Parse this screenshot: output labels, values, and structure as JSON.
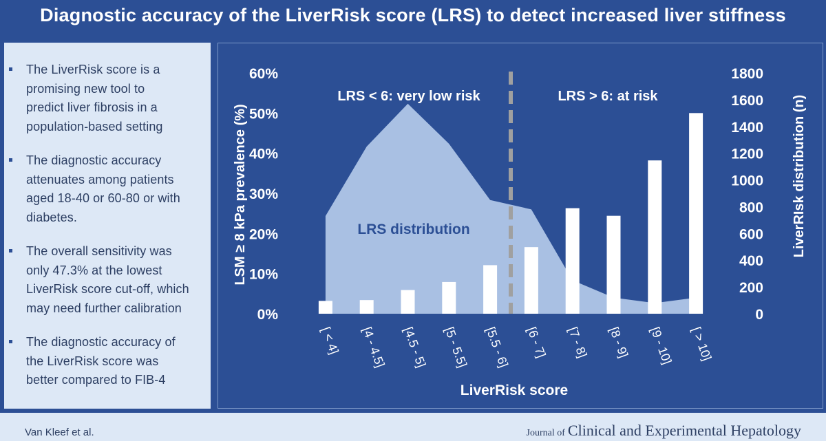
{
  "title": "Diagnostic accuracy of the LiverRisk score (LRS) to detect increased liver stiffness",
  "bullets": [
    "The LiverRisk score is a\npromising new tool to\npredict liver fibrosis in a\npopulation-based setting",
    "The diagnostic accuracy\nattenuates among patients\naged 18-40 or 60-80 or with\ndiabetes.",
    "The overall sensitivity was\nonly 47.3% at the lowest\nLiverRisk score cut-off, which\nmay need further calibration",
    "The diagnostic accuracy of\nthe LiverRisk score was\nbetter compared to FIB-4"
  ],
  "footer": {
    "authors": "Van Kleef et al.",
    "journal_prefix": "Journal of",
    "journal_name": "Clinical and Experimental Hepatology"
  },
  "colors": {
    "background": "#2c4f95",
    "left_panel": "#dde8f6",
    "bars": "#ffffff",
    "area": "#a9c0e3",
    "divider": "#a0a0a0"
  },
  "chart_data": {
    "type": "bar",
    "xlabel": "LiverRisk score",
    "ylabel": "LSM ≥ 8 kPa prevalence (%)",
    "y2label": "LiverRIsk distribution (n)",
    "ylim": [
      0,
      60
    ],
    "y_ticks": [
      "0%",
      "10%",
      "20%",
      "30%",
      "40%",
      "50%",
      "60%"
    ],
    "y2lim": [
      0,
      1800
    ],
    "y2_ticks": [
      "0",
      "200",
      "400",
      "600",
      "800",
      "1000",
      "1200",
      "1400",
      "1600",
      "1800"
    ],
    "categories": [
      "[ < 4]",
      "[4 - 4.5]",
      "[4.5 - 5]",
      "[5 - 5.5]",
      "[5.5 - 6]",
      "[6 - 7]",
      "[7 - 8]",
      "[8 - 9]",
      "[9 - 10]",
      "[ > 10]"
    ],
    "series": [
      {
        "type": "bar",
        "axis": "left",
        "values": [
          3.2,
          3.4,
          5.9,
          7.9,
          12.1,
          16.6,
          26.3,
          24.4,
          38.2,
          50.0
        ]
      },
      {
        "type": "area",
        "axis": "right",
        "name": "LRS distribution",
        "values": [
          730,
          1250,
          1570,
          1270,
          850,
          780,
          250,
          120,
          80,
          120
        ]
      }
    ],
    "annotations": [
      {
        "text": "LRS < 6: very low risk"
      },
      {
        "text": "LRS > 6: at risk"
      }
    ],
    "cutoff_after_category": "[5.5 - 6]",
    "grid": false,
    "legend": "none"
  }
}
